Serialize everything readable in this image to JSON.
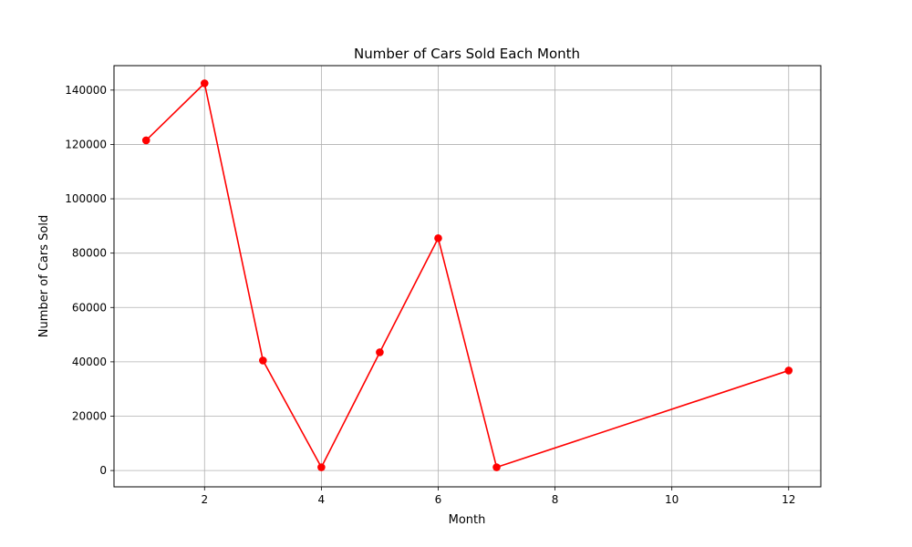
{
  "chart_data": {
    "type": "line",
    "title": "Number of Cars Sold Each Month",
    "xlabel": "Month",
    "ylabel": "Number of Cars Sold",
    "x": [
      1,
      2,
      3,
      4,
      5,
      6,
      7,
      12
    ],
    "series": [
      {
        "values": [
          121500,
          142500,
          40500,
          1200,
          43500,
          85500,
          1200,
          36800
        ],
        "color": "#ff0000",
        "marker": "circle"
      }
    ],
    "xlim": [
      0.45,
      12.55
    ],
    "ylim": [
      -6000,
      149000
    ],
    "xticks": [
      2,
      4,
      6,
      8,
      10,
      12
    ],
    "yticks": [
      0,
      20000,
      40000,
      60000,
      80000,
      100000,
      120000,
      140000
    ],
    "grid": true
  }
}
